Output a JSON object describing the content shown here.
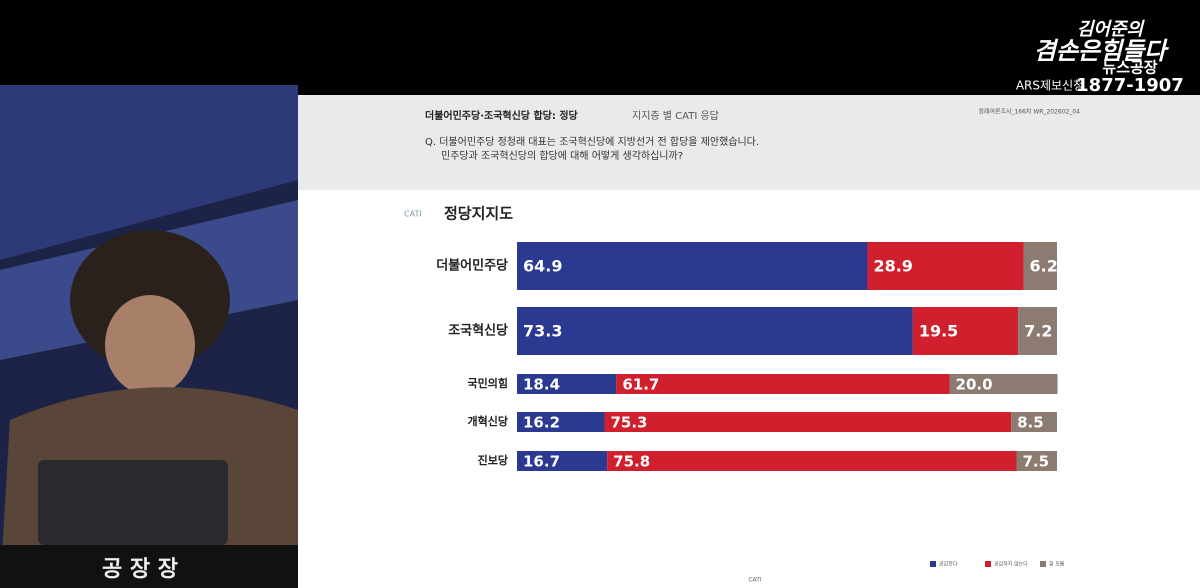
{
  "overlay": {
    "logo": [
      "김어준의",
      "겸손은힘들다",
      "뉴스공장"
    ],
    "phone_label": "ARS제보신청",
    "phone": "1877-1907",
    "nameplate": "공 장 장"
  },
  "slide": {
    "header_bold": "더불어민주당·조국혁신당 합당: 정당",
    "header_light": "지지층 별 CATI 응답",
    "survey_id": "정례여론조사_166차  WR_202602_04",
    "question": [
      "Q. 더불어민주당 정청래 대표는 조국혁신당에 지방선거 전 합당을 제안했습니다.",
      "민주당과 조국혁신당의 합당에 대해 어떻게 생각하십니까?"
    ],
    "method": "CATI",
    "footer": "CATI"
  },
  "chart_data": {
    "type": "bar",
    "orientation": "horizontal",
    "stacked": true,
    "title": "정당지지도",
    "categories": [
      "더불어민주당",
      "조국혁신당",
      "국민의힘",
      "개혁신당",
      "진보당"
    ],
    "series": [
      {
        "name": "공감한다",
        "color": "#2b3990",
        "values": [
          64.9,
          73.3,
          18.4,
          16.2,
          16.7
        ]
      },
      {
        "name": "공감하지 않는다",
        "color": "#d0202e",
        "values": [
          28.9,
          19.5,
          61.7,
          75.3,
          75.8
        ]
      },
      {
        "name": "잘 모름",
        "color": "#8c7b70",
        "values": [
          6.2,
          7.2,
          20.0,
          8.5,
          7.5
        ],
        "value_labels": [
          "6.2",
          "7.2",
          "20.0",
          "8.5",
          "7.5"
        ]
      }
    ],
    "xlim": [
      0,
      100
    ],
    "legend": "bottom-right"
  }
}
